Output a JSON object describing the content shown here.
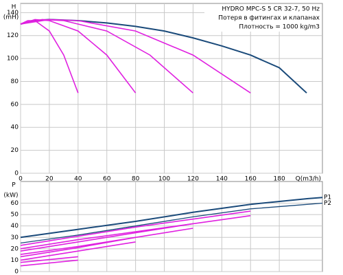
{
  "chart_data": [
    {
      "type": "line",
      "ylabel": "H",
      "yunit": "(mH)",
      "xlabel": "Q(m3/h)",
      "annotations": [
        "HYDRO MPC-S 5 CR 32-7, 50 Hz",
        "Потеря в фитингах и клапанах",
        "Плотность = 1000 kg/m3"
      ],
      "xlim": [
        0,
        210
      ],
      "ylim": [
        0,
        148
      ],
      "xticks": [
        0,
        20,
        40,
        60,
        80,
        100,
        120,
        140,
        160,
        180
      ],
      "yticks": [
        0,
        20,
        40,
        60,
        80,
        100,
        120,
        140
      ],
      "grid": true,
      "series": [
        {
          "color": "#1a4a7a",
          "x": [
            0,
            10,
            20,
            40,
            60,
            80,
            100,
            120,
            140,
            160,
            180,
            199
          ],
          "values": [
            130,
            133,
            134,
            133,
            131,
            128,
            124,
            118,
            111,
            103,
            92,
            70
          ]
        },
        {
          "color": "#e020e0",
          "x": [
            0,
            5,
            10,
            20,
            30,
            40
          ],
          "values": [
            130,
            133,
            133,
            124,
            103,
            70
          ]
        },
        {
          "color": "#e020e0",
          "x": [
            0,
            10,
            20,
            40,
            60,
            80
          ],
          "values": [
            130,
            134,
            133,
            124,
            103,
            70
          ]
        },
        {
          "color": "#e020e0",
          "x": [
            0,
            15,
            30,
            60,
            90,
            120
          ],
          "values": [
            130,
            134,
            133,
            124,
            103,
            70
          ]
        },
        {
          "color": "#e020e0",
          "x": [
            0,
            20,
            40,
            80,
            120,
            160
          ],
          "values": [
            130,
            134,
            133,
            124,
            103,
            70
          ]
        }
      ]
    },
    {
      "type": "line",
      "ylabel": "P",
      "yunit": "(kW)",
      "xlim": [
        0,
        210
      ],
      "ylim": [
        0,
        79
      ],
      "xticks": [
        0,
        20,
        40,
        60,
        80,
        100,
        120,
        140,
        160,
        180
      ],
      "yticks": [
        0,
        10,
        20,
        30,
        40,
        50,
        60
      ],
      "grid": true,
      "series": [
        {
          "name": "P1",
          "color": "#1a4a7a",
          "x": [
            0,
            40,
            80,
            120,
            160,
            200,
            210
          ],
          "values": [
            30,
            37,
            44,
            52,
            59,
            64,
            65
          ]
        },
        {
          "name": "P2",
          "color": "#1a4a7a",
          "x": [
            0,
            40,
            80,
            120,
            160,
            200,
            210
          ],
          "values": [
            25,
            32,
            40,
            48,
            55,
            59,
            60
          ]
        },
        {
          "color": "#e020e0",
          "x": [
            0,
            40,
            80,
            120,
            160
          ],
          "values": [
            23,
            31,
            39,
            46,
            53
          ]
        },
        {
          "color": "#e020e0",
          "x": [
            0,
            40,
            80,
            120,
            160
          ],
          "values": [
            20,
            28,
            35,
            42,
            49
          ]
        },
        {
          "color": "#e020e0",
          "x": [
            0,
            40,
            80,
            120
          ],
          "values": [
            18,
            26,
            34,
            42
          ]
        },
        {
          "color": "#e020e0",
          "x": [
            0,
            40,
            80,
            120
          ],
          "values": [
            15,
            22,
            30,
            38
          ]
        },
        {
          "color": "#e020e0",
          "x": [
            0,
            40,
            80
          ],
          "values": [
            13,
            21,
            30
          ]
        },
        {
          "color": "#e020e0",
          "x": [
            0,
            40,
            80
          ],
          "values": [
            10,
            18,
            26
          ]
        },
        {
          "color": "#e020e0",
          "x": [
            0,
            40
          ],
          "values": [
            8,
            13
          ]
        },
        {
          "color": "#e020e0",
          "x": [
            0,
            40
          ],
          "values": [
            5,
            10
          ]
        }
      ]
    }
  ]
}
